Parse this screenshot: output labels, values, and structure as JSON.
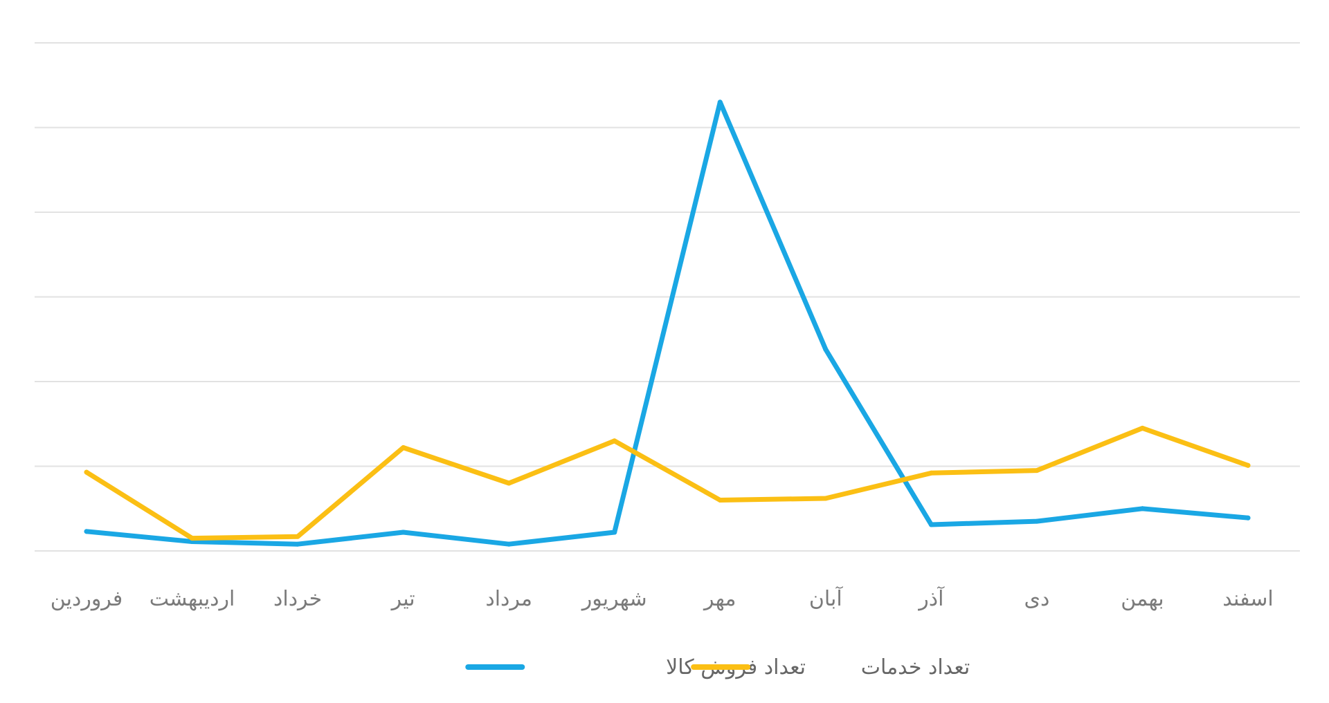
{
  "chart_data": {
    "type": "line",
    "categories": [
      "فروردین",
      "اردیبهشت",
      "خرداد",
      "تیر",
      "مرداد",
      "شهریور",
      "مهر",
      "آبان",
      "آذر",
      "دی",
      "بهمن",
      "اسفند"
    ],
    "series": [
      {
        "name": "تعداد فروش کالا",
        "color": "#1aa7e4",
        "values": [
          23,
          11,
          8,
          22,
          8,
          22,
          530,
          238,
          31,
          35,
          50,
          39
        ]
      },
      {
        "name": "تعداد خدمات",
        "color": "#fbbf14",
        "values": [
          93,
          15,
          17,
          122,
          80,
          130,
          60,
          62,
          92,
          95,
          145,
          101
        ]
      }
    ],
    "ylim": [
      0,
      600
    ],
    "grid": true,
    "legend": "bottom-center",
    "title": "",
    "xlabel": "",
    "ylabel": ""
  }
}
